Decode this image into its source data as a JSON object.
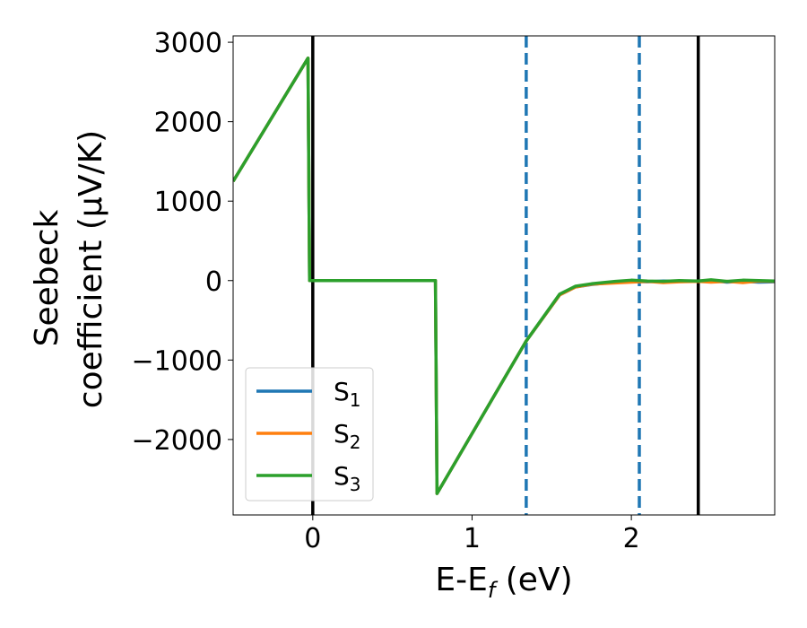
{
  "chart_data": {
    "type": "line",
    "xlabel": "E-E",
    "xlabel_sub": "f",
    "xlabel_unit": " (eV)",
    "ylabel_line1": "Seebeck",
    "ylabel_line2": "coefficient  (μV/K)",
    "xlim": [
      -0.5,
      2.9
    ],
    "ylim": [
      -2950,
      3080
    ],
    "x_ticks": [
      0,
      1,
      2
    ],
    "x_tick_labels": [
      "0",
      "1",
      "2"
    ],
    "y_ticks": [
      -2000,
      -1000,
      0,
      1000,
      2000,
      3000
    ],
    "y_tick_labels": [
      "−2000",
      "−1000",
      "0",
      "1000",
      "2000",
      "3000"
    ],
    "legend_position": "lower-left",
    "colors": {
      "S1": "#1f77b4",
      "S2": "#ff7f0e",
      "S3": "#2ca02c",
      "vline_solid": "#000000",
      "vline_dashed": "#1f77b4"
    },
    "vlines": [
      {
        "x": 0.0,
        "style": "solid",
        "color": "#000000"
      },
      {
        "x": 2.42,
        "style": "solid",
        "color": "#000000"
      },
      {
        "x": 1.34,
        "style": "dashed",
        "color": "#1f77b4"
      },
      {
        "x": 2.05,
        "style": "dashed",
        "color": "#1f77b4"
      }
    ],
    "series": [
      {
        "name": "S",
        "name_sub": "1",
        "color": "#1f77b4",
        "x": [
          -0.5,
          -0.03,
          -0.02,
          0.77,
          0.78,
          1.34,
          1.55,
          1.65,
          1.75,
          1.9,
          2.0,
          2.1,
          2.2,
          2.3,
          2.42,
          2.5,
          2.6,
          2.7,
          2.8,
          2.9
        ],
        "y": [
          1250,
          2800,
          0,
          0,
          -2680,
          -760,
          -180,
          -80,
          -50,
          -20,
          -10,
          -15,
          -5,
          -10,
          -5,
          0,
          -20,
          -10,
          -20,
          -15
        ]
      },
      {
        "name": "S",
        "name_sub": "2",
        "color": "#ff7f0e",
        "x": [
          -0.5,
          -0.03,
          -0.02,
          0.77,
          0.78,
          1.34,
          1.55,
          1.65,
          1.75,
          1.9,
          2.0,
          2.1,
          2.2,
          2.3,
          2.42,
          2.5,
          2.6,
          2.7,
          2.8,
          2.9
        ],
        "y": [
          1250,
          2800,
          0,
          0,
          -2680,
          -760,
          -180,
          -80,
          -45,
          -30,
          -20,
          -10,
          -25,
          -15,
          -10,
          -20,
          -10,
          -25,
          -5,
          -10
        ]
      },
      {
        "name": "S",
        "name_sub": "3",
        "color": "#2ca02c",
        "x": [
          -0.5,
          -0.03,
          -0.02,
          0.77,
          0.78,
          1.34,
          1.55,
          1.65,
          1.75,
          1.9,
          2.0,
          2.1,
          2.2,
          2.3,
          2.42,
          2.5,
          2.6,
          2.7,
          2.8,
          2.9
        ],
        "y": [
          1250,
          2800,
          0,
          0,
          -2680,
          -760,
          -170,
          -70,
          -40,
          -10,
          5,
          -5,
          -10,
          0,
          -5,
          10,
          -10,
          5,
          0,
          -5
        ]
      }
    ]
  }
}
